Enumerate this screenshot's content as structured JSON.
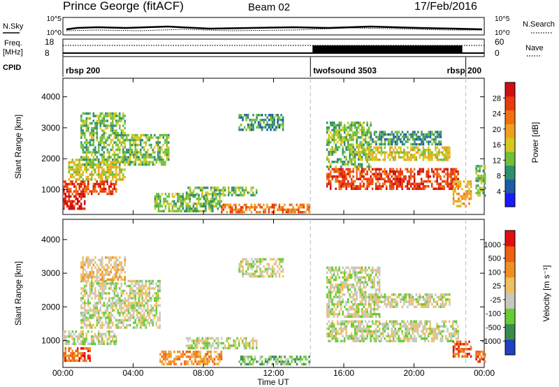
{
  "header": {
    "station": "Prince George (fitACF)",
    "beam": "Beam 02",
    "date": "17/Feb/2016"
  },
  "left_labels": {
    "nsky": "N.Sky",
    "freq_line1": "Freq.",
    "freq_line2": "[MHz]",
    "cpid": "CPID"
  },
  "right_labels": {
    "nsearch": "N.Search",
    "nave": "Nave"
  },
  "noise_panel": {
    "ticks_left": [
      "10^5",
      "10^0"
    ],
    "ticks_right": [
      "10^5",
      "10^0"
    ]
  },
  "freq_panel": {
    "ticks_left": [
      "18",
      "8"
    ],
    "ticks_right": [
      "60",
      "0"
    ]
  },
  "cpid_segments": [
    {
      "label": "rbsp 200",
      "start_hour": 0.0,
      "end_hour": 14.1
    },
    {
      "label": "twofsound 3503",
      "start_hour": 14.1,
      "end_hour": 22.95
    },
    {
      "label": "rbsp 200",
      "start_hour": 22.95,
      "end_hour": 24.0
    }
  ],
  "chart_data": [
    {
      "type": "heatmap",
      "name": "power",
      "ylabel": "Slant Range [km]",
      "yticks": [
        "1000",
        "2000",
        "3000",
        "4000"
      ],
      "ylim": [
        200,
        4600
      ],
      "xlim": [
        0,
        24
      ],
      "colorbar_label": "Power [dB]",
      "colorbar_ticks": [
        "4",
        "8",
        "12",
        "16",
        "20",
        "24",
        "28"
      ],
      "colorbar_colors": [
        "#1a1aff",
        "#1e5aa8",
        "#2e8f6e",
        "#6fbf3a",
        "#d6c81e",
        "#f0a020",
        "#f07010",
        "#e83a10",
        "#d01010"
      ],
      "echo_regions": [
        {
          "t0": 0.0,
          "t1": 1.2,
          "r0": 400,
          "r1": 900,
          "level": 8
        },
        {
          "t0": 0.0,
          "t1": 3.0,
          "r0": 900,
          "r1": 1300,
          "level": 7
        },
        {
          "t0": 0.3,
          "t1": 3.5,
          "r0": 1300,
          "r1": 2000,
          "level": 4
        },
        {
          "t0": 1.0,
          "t1": 6.0,
          "r0": 1800,
          "r1": 2800,
          "level": 3
        },
        {
          "t0": 1.0,
          "t1": 3.5,
          "r0": 2800,
          "r1": 3500,
          "level": 3
        },
        {
          "t0": 5.2,
          "t1": 9.0,
          "r0": 300,
          "r1": 900,
          "level": 3
        },
        {
          "t0": 7.0,
          "t1": 11.0,
          "r0": 800,
          "r1": 1100,
          "level": 3
        },
        {
          "t0": 9.0,
          "t1": 14.0,
          "r0": 300,
          "r1": 550,
          "level": 6
        },
        {
          "t0": 10.0,
          "t1": 12.5,
          "r0": 2900,
          "r1": 3450,
          "level": 2
        },
        {
          "t0": 15.0,
          "t1": 22.5,
          "r0": 1000,
          "r1": 1700,
          "level": 7
        },
        {
          "t0": 15.0,
          "t1": 17.5,
          "r0": 1700,
          "r1": 3200,
          "level": 3
        },
        {
          "t0": 16.8,
          "t1": 22.0,
          "r0": 2000,
          "r1": 2400,
          "level": 4
        },
        {
          "t0": 17.5,
          "t1": 21.5,
          "r0": 2500,
          "r1": 2900,
          "level": 2
        },
        {
          "t0": 22.2,
          "t1": 23.2,
          "r0": 500,
          "r1": 1300,
          "level": 5
        },
        {
          "t0": 23.5,
          "t1": 24.0,
          "r0": 800,
          "r1": 1800,
          "level": 3
        }
      ]
    },
    {
      "type": "heatmap",
      "name": "velocity",
      "ylabel": "Slant Range [km]",
      "yticks": [
        "1000",
        "2000",
        "3000",
        "4000"
      ],
      "ylim": [
        200,
        4600
      ],
      "xlim": [
        0,
        24
      ],
      "xlabel": "Time UT",
      "xticks": [
        "00:00",
        "04:00",
        "08:00",
        "12:00",
        "16:00",
        "20:00",
        "00:00"
      ],
      "colorbar_label": "Velocity [m s⁻¹]",
      "colorbar_ticks": [
        "1000",
        "500",
        "100",
        "25",
        "-25",
        "-100",
        "-500",
        "-1000"
      ],
      "colorbar_colors": [
        "#2040c0",
        "#3a8a50",
        "#66cc33",
        "#c8c8c0",
        "#f0c060",
        "#f09020",
        "#f06010",
        "#e01010"
      ],
      "echo_regions": [
        {
          "t0": 0.0,
          "t1": 1.5,
          "r0": 400,
          "r1": 800,
          "level": 6
        },
        {
          "t0": 0.0,
          "t1": 3.0,
          "r0": 900,
          "r1": 1300,
          "level": 3
        },
        {
          "t0": 1.0,
          "t1": 5.5,
          "r0": 1400,
          "r1": 2800,
          "level": 3
        },
        {
          "t0": 1.0,
          "t1": 3.5,
          "r0": 2800,
          "r1": 3500,
          "level": 4
        },
        {
          "t0": 5.5,
          "t1": 9.0,
          "r0": 300,
          "r1": 700,
          "level": 5
        },
        {
          "t0": 7.0,
          "t1": 11.0,
          "r0": 800,
          "r1": 1100,
          "level": 3
        },
        {
          "t0": 10.0,
          "t1": 14.0,
          "r0": 300,
          "r1": 550,
          "level": 2
        },
        {
          "t0": 10.0,
          "t1": 12.5,
          "r0": 2900,
          "r1": 3450,
          "level": 3
        },
        {
          "t0": 15.0,
          "t1": 22.5,
          "r0": 1000,
          "r1": 1600,
          "level": 3
        },
        {
          "t0": 15.0,
          "t1": 18.0,
          "r0": 1700,
          "r1": 3200,
          "level": 3
        },
        {
          "t0": 17.0,
          "t1": 22.0,
          "r0": 2000,
          "r1": 2400,
          "level": 3
        },
        {
          "t0": 22.2,
          "t1": 23.2,
          "r0": 500,
          "r1": 1000,
          "level": 6
        },
        {
          "t0": 23.5,
          "t1": 24.0,
          "r0": 400,
          "r1": 700,
          "level": 6
        }
      ]
    }
  ]
}
